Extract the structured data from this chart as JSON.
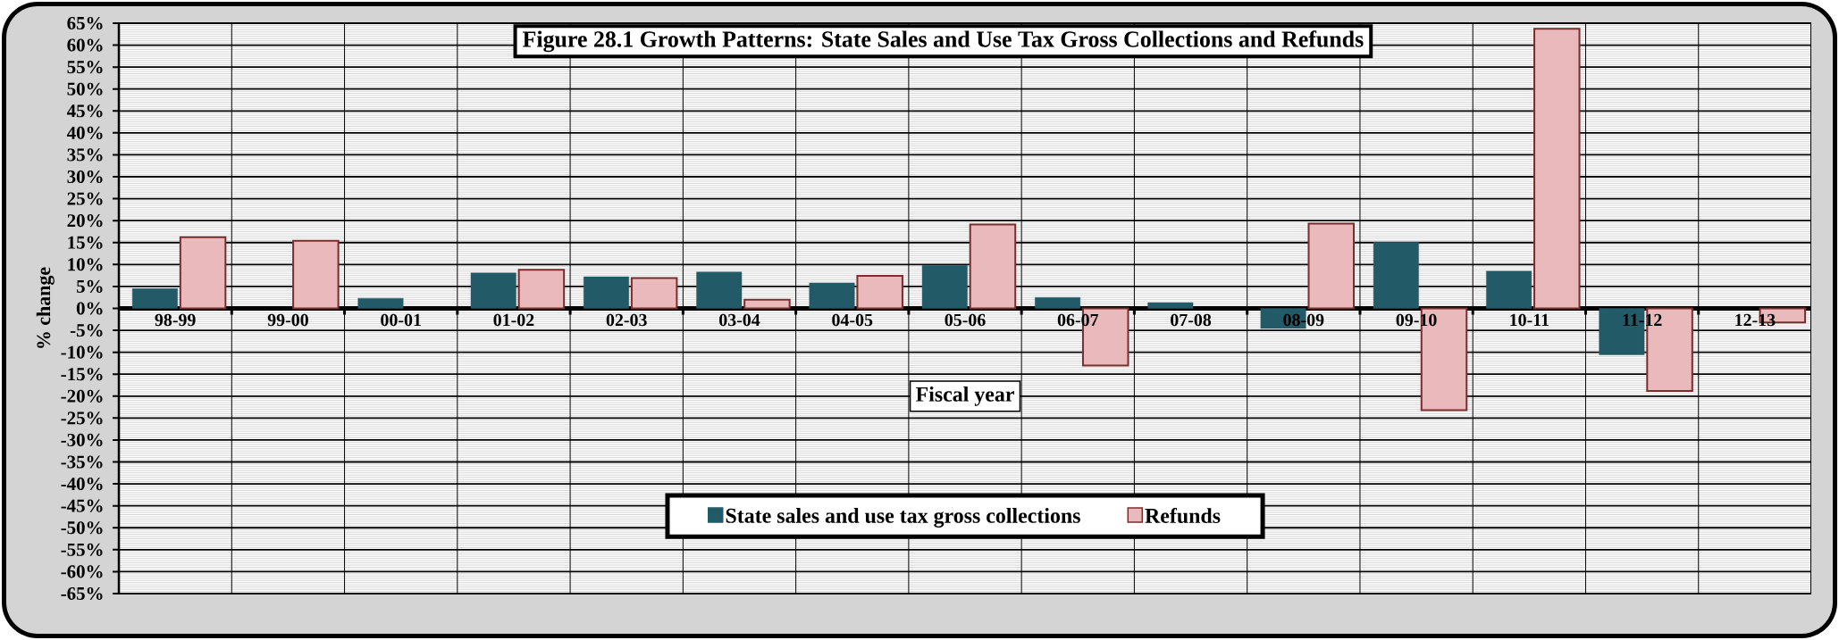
{
  "chart_data": {
    "type": "bar",
    "title": "Figure 28.1 Growth Patterns: State Sales and Use Tax Gross Collections and Refunds",
    "xlabel": "Fiscal year",
    "ylabel": "% change",
    "categories": [
      "98-99",
      "99-00",
      "00-01",
      "01-02",
      "02-03",
      "03-04",
      "04-05",
      "05-06",
      "06-07",
      "07-08",
      "08-09",
      "09-10",
      "10-11",
      "11-12",
      "12-13"
    ],
    "series": [
      {
        "name": "State sales and use tax gross collections",
        "color": "#235a68",
        "values": [
          4.5,
          null,
          2.3,
          8.1,
          7.2,
          8.3,
          5.8,
          9.8,
          2.5,
          1.3,
          -4.6,
          15.1,
          8.5,
          -10.6,
          null
        ]
      },
      {
        "name": "Refunds",
        "color": "#e9b9bb",
        "values": [
          16.2,
          15.4,
          null,
          8.8,
          6.9,
          2.0,
          7.4,
          19.1,
          -13.0,
          null,
          19.3,
          -23.2,
          63.7,
          -18.8,
          -3.2
        ]
      }
    ],
    "ylim": [
      -65,
      65
    ],
    "yticks": [
      {
        "value": -65,
        "label": "-65%"
      },
      {
        "value": -60,
        "label": "-60%"
      },
      {
        "value": -55,
        "label": "-55%"
      },
      {
        "value": -50,
        "label": "-50%"
      },
      {
        "value": -45,
        "label": "-45%"
      },
      {
        "value": -40,
        "label": "-40%"
      },
      {
        "value": -35,
        "label": "-35%"
      },
      {
        "value": -30,
        "label": "-30%"
      },
      {
        "value": -25,
        "label": "-25%"
      },
      {
        "value": -20,
        "label": "-20%"
      },
      {
        "value": -15,
        "label": "-15%"
      },
      {
        "value": -10,
        "label": "-10%"
      },
      {
        "value": -5,
        "label": "-5%"
      },
      {
        "value": 0,
        "label": "0%"
      },
      {
        "value": 5,
        "label": "5%"
      },
      {
        "value": 10,
        "label": "10%"
      },
      {
        "value": 15,
        "label": "15%"
      },
      {
        "value": 20,
        "label": "20%"
      },
      {
        "value": 25,
        "label": "25%"
      },
      {
        "value": 30,
        "label": "30%"
      },
      {
        "value": 35,
        "label": "35%"
      },
      {
        "value": 40,
        "label": "40%"
      },
      {
        "value": 45,
        "label": "45%"
      },
      {
        "value": 50,
        "label": "50%"
      },
      {
        "value": 55,
        "label": "55%"
      },
      {
        "value": 60,
        "label": "60%"
      },
      {
        "value": 65,
        "label": "65%"
      }
    ],
    "grid": true,
    "legend": "bottom"
  }
}
